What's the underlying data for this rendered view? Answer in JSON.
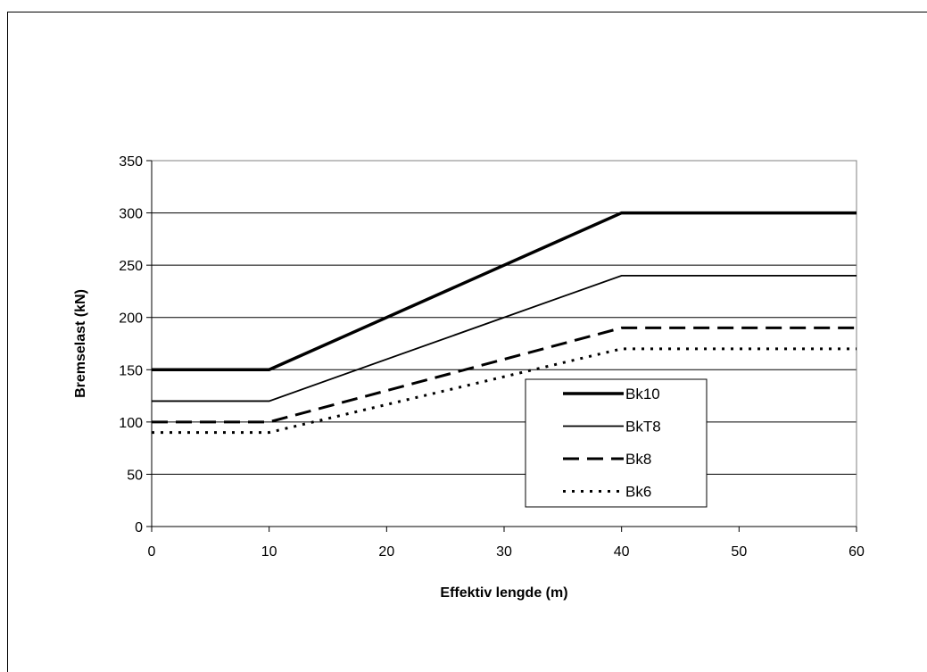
{
  "chart_data": {
    "type": "line",
    "title": "",
    "xlabel": "Effektiv lengde (m)",
    "ylabel": "Bremselast (kN)",
    "xlim": [
      0,
      60
    ],
    "ylim": [
      0,
      350
    ],
    "xticks": [
      0,
      10,
      20,
      30,
      40,
      50,
      60
    ],
    "yticks": [
      0,
      50,
      100,
      150,
      200,
      250,
      300,
      350
    ],
    "grid": "horizontal",
    "legend_position": "center-right",
    "series": [
      {
        "name": "Bk10",
        "style": "thick-solid",
        "x": [
          0,
          10,
          40,
          60
        ],
        "y": [
          150,
          150,
          300,
          300
        ]
      },
      {
        "name": "BkT8",
        "style": "thin-solid",
        "x": [
          0,
          10,
          40,
          60
        ],
        "y": [
          120,
          120,
          240,
          240
        ]
      },
      {
        "name": "Bk8",
        "style": "dashed",
        "x": [
          0,
          10,
          40,
          60
        ],
        "y": [
          100,
          100,
          190,
          190
        ]
      },
      {
        "name": "Bk6",
        "style": "dotted",
        "x": [
          0,
          10,
          40,
          60
        ],
        "y": [
          90,
          90,
          170,
          170
        ]
      }
    ]
  }
}
